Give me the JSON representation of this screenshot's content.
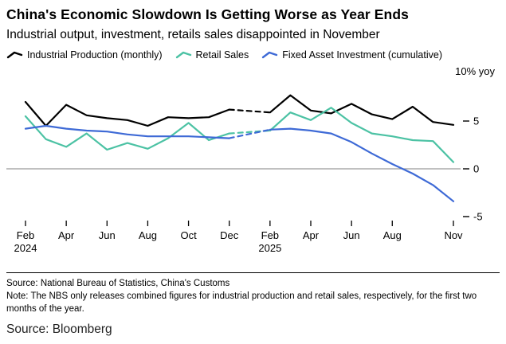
{
  "header": {
    "title": "China's Economic Slowdown Is Getting Worse as Year Ends",
    "subtitle": "Industrial output, investment, retails sales disappointed in November"
  },
  "legend": [
    {
      "label": "Industrial Production (monthly)",
      "color": "#000000"
    },
    {
      "label": "Retail Sales",
      "color": "#4cc2a4"
    },
    {
      "label": "Fixed Asset Investment (cumulative)",
      "color": "#3e6ad6"
    }
  ],
  "chart_data": {
    "type": "line",
    "title": "China's Economic Slowdown Is Getting Worse as Year Ends",
    "unit_label": "10% yoy",
    "ylabel": "% yoy",
    "ylim": [
      -5.5,
      10
    ],
    "yticks": [
      5,
      0,
      -5
    ],
    "grid": "zero-line-only",
    "legend_position": "top",
    "x": [
      "Feb 2024",
      "Mar 2024",
      "Apr 2024",
      "May 2024",
      "Jun 2024",
      "Jul 2024",
      "Aug 2024",
      "Sep 2024",
      "Oct 2024",
      "Nov 2024",
      "Dec 2024",
      "Jan 2025",
      "Feb 2025",
      "Mar 2025",
      "Apr 2025",
      "May 2025",
      "Jun 2025",
      "Jul 2025",
      "Aug 2025",
      "Sep 2025",
      "Oct 2025",
      "Nov 2025"
    ],
    "x_ticks": [
      {
        "index": 0,
        "label": "Feb",
        "sub": "2024"
      },
      {
        "index": 2,
        "label": "Apr"
      },
      {
        "index": 4,
        "label": "Jun"
      },
      {
        "index": 6,
        "label": "Aug"
      },
      {
        "index": 8,
        "label": "Oct"
      },
      {
        "index": 10,
        "label": "Dec"
      },
      {
        "index": 12,
        "label": "Feb",
        "sub": "2025"
      },
      {
        "index": 14,
        "label": "Apr"
      },
      {
        "index": 16,
        "label": "Jun"
      },
      {
        "index": 18,
        "label": "Aug"
      },
      {
        "index": 21,
        "label": "Nov"
      }
    ],
    "dashed_segment": {
      "from": "Dec 2024",
      "to": "Feb 2025"
    },
    "series": [
      {
        "name": "Industrial Production (monthly)",
        "color": "#000000",
        "values": [
          7.0,
          4.5,
          6.7,
          5.6,
          5.3,
          5.1,
          4.5,
          5.4,
          5.3,
          5.4,
          6.2,
          null,
          5.9,
          7.7,
          6.1,
          5.8,
          6.8,
          5.7,
          5.2,
          6.5,
          4.9,
          4.6
        ]
      },
      {
        "name": "Retail Sales",
        "color": "#4cc2a4",
        "values": [
          5.5,
          3.1,
          2.3,
          3.7,
          2.0,
          2.7,
          2.1,
          3.2,
          4.8,
          3.0,
          3.7,
          null,
          4.0,
          5.9,
          5.1,
          6.4,
          4.8,
          3.7,
          3.4,
          3.0,
          2.9,
          0.7
        ]
      },
      {
        "name": "Fixed Asset Investment (cumulative)",
        "color": "#3e6ad6",
        "values": [
          4.2,
          4.5,
          4.2,
          4.0,
          3.9,
          3.6,
          3.4,
          3.4,
          3.4,
          3.3,
          3.2,
          null,
          4.1,
          4.2,
          4.0,
          3.7,
          2.8,
          1.6,
          0.5,
          -0.5,
          -1.7,
          -3.4
        ]
      }
    ]
  },
  "footer": {
    "source": "Source: National Bureau of Statistics, China's Customs",
    "note": "Note: The NBS only releases combined figures for industrial production and retail sales, respectively, for the first two months of the year.",
    "credit": "Source: Bloomberg"
  }
}
